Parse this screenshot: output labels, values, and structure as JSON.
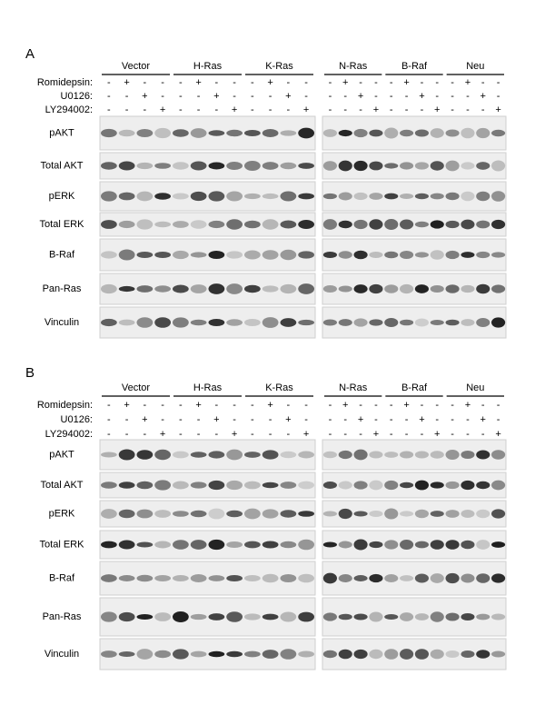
{
  "panels": [
    {
      "label": "A",
      "groups": [
        "Vector",
        "H-Ras",
        "K-Ras",
        "N-Ras",
        "B-Raf",
        "Neu"
      ],
      "treatments": [
        {
          "name": "Romidepsin:",
          "signs": [
            "-",
            "+",
            "-",
            "-",
            "-",
            "+",
            "-",
            "-",
            "-",
            "+",
            "-",
            "-",
            "-",
            "+",
            "-",
            "-",
            "-",
            "+",
            "-",
            "-",
            "-",
            "+",
            "-",
            "-"
          ]
        },
        {
          "name": "U0126:",
          "signs": [
            "-",
            "-",
            "+",
            "-",
            "-",
            "-",
            "+",
            "-",
            "-",
            "-",
            "+",
            "-",
            "-",
            "-",
            "+",
            "-",
            "-",
            "-",
            "+",
            "-",
            "-",
            "-",
            "+",
            "-"
          ]
        },
        {
          "name": "LY294002:",
          "signs": [
            "-",
            "-",
            "-",
            "+",
            "-",
            "-",
            "-",
            "+",
            "-",
            "-",
            "-",
            "+",
            "-",
            "-",
            "-",
            "+",
            "-",
            "-",
            "-",
            "+",
            "-",
            "-",
            "-",
            "+"
          ]
        }
      ],
      "blots": [
        "pAKT",
        "Total AKT",
        "pERK",
        "Total ERK",
        "B-Raf",
        "Pan-Ras",
        "Vinculin"
      ]
    },
    {
      "label": "B",
      "groups": [
        "Vector",
        "H-Ras",
        "K-Ras",
        "N-Ras",
        "B-Raf",
        "Neu"
      ],
      "treatments": [
        {
          "name": "Romidepsin:",
          "signs": [
            "-",
            "+",
            "-",
            "-",
            "-",
            "+",
            "-",
            "-",
            "-",
            "+",
            "-",
            "-",
            "-",
            "+",
            "-",
            "-",
            "-",
            "+",
            "-",
            "-",
            "-",
            "+",
            "-",
            "-"
          ]
        },
        {
          "name": "U0126:",
          "signs": [
            "-",
            "-",
            "+",
            "-",
            "-",
            "-",
            "+",
            "-",
            "-",
            "-",
            "+",
            "-",
            "-",
            "-",
            "+",
            "-",
            "-",
            "-",
            "+",
            "-",
            "-",
            "-",
            "+",
            "-"
          ]
        },
        {
          "name": "LY294002:",
          "signs": [
            "-",
            "-",
            "-",
            "+",
            "-",
            "-",
            "-",
            "+",
            "-",
            "-",
            "-",
            "+",
            "-",
            "-",
            "-",
            "+",
            "-",
            "-",
            "-",
            "+",
            "-",
            "-",
            "-",
            "+"
          ]
        }
      ],
      "blots": [
        "pAKT",
        "Total AKT",
        "pERK",
        "Total ERK",
        "B-Raf",
        "Pan-Ras",
        "Vinculin"
      ]
    }
  ]
}
